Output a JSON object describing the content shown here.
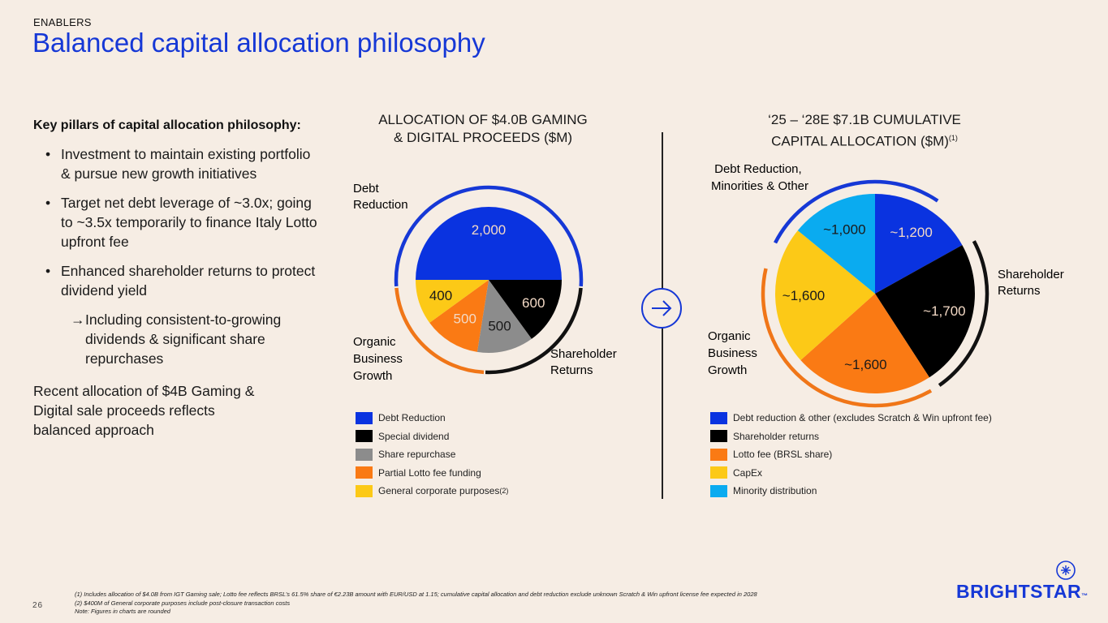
{
  "header": {
    "eyebrow": "ENABLERS",
    "title": "Balanced capital allocation philosophy"
  },
  "left": {
    "heading": "Key pillars of capital allocation philosophy:",
    "bullets": [
      "Investment to maintain existing portfolio & pursue new growth initiatives",
      "Target net debt leverage of ~3.0x; going to ~3.5x temporarily to finance Italy Lotto upfront fee",
      "Enhanced shareholder returns to protect dividend yield"
    ],
    "bullet_marker": "•",
    "sub_bullet_marker": "→",
    "sub_bullet": "Including consistent-to-growing dividends & significant share repurchases",
    "closing": "Recent allocation of $4B Gaming & Digital sale proceeds reflects balanced approach"
  },
  "chart_data": [
    {
      "type": "pie",
      "title_line1": "ALLOCATION OF $4.0B GAMING",
      "title_line2": "& DIGITAL PROCEEDS ($M)",
      "slices": [
        {
          "label": "Debt Reduction",
          "value": 2000,
          "display": "2,000",
          "color": "#0a33e0",
          "text_color": "#f3d9c5"
        },
        {
          "label": "Special dividend",
          "value": 600,
          "display": "600",
          "color": "#000000",
          "text_color": "#f3d9c5"
        },
        {
          "label": "Share repurchase",
          "value": 500,
          "display": "500",
          "color": "#8c8c8c",
          "text_color": "#1a1a1a"
        },
        {
          "label": "Partial Lotto fee funding",
          "value": 500,
          "display": "500",
          "color": "#fa7a14",
          "text_color": "#f3d9c5"
        },
        {
          "label": "General corporate purposes",
          "value": 400,
          "display": "400",
          "color": "#fcc917",
          "text_color": "#1a1a1a",
          "superscript": "(2)"
        }
      ],
      "group_labels": {
        "debt": {
          "line1": "Debt",
          "line2": "Reduction",
          "color": "#1638d6"
        },
        "organic": {
          "line1": "Organic",
          "line2": "Business",
          "line3": "Growth",
          "color": "#f07618"
        },
        "shareholder": {
          "line1": "Shareholder",
          "line2": "Returns",
          "color": "#111111"
        }
      }
    },
    {
      "type": "pie",
      "title_line1": "‘25 – ‘28E $7.1B CUMULATIVE",
      "title_line2": "CAPITAL ALLOCATION ($M)",
      "title_superscript": "(1)",
      "slices": [
        {
          "label": "Debt reduction & other (excludes Scratch & Win upfront fee)",
          "value": 1200,
          "display": "~1,200",
          "color": "#0a33e0",
          "text_color": "#f3d9c5"
        },
        {
          "label": "Shareholder returns",
          "value": 1700,
          "display": "~1,700",
          "color": "#000000",
          "text_color": "#f3d9c5"
        },
        {
          "label": "Lotto fee (BRSL share)",
          "value": 1600,
          "display": "~1,600",
          "color": "#fa7a14",
          "text_color": "#1a1a1a"
        },
        {
          "label": "CapEx",
          "value": 1600,
          "display": "~1,600",
          "color": "#fcc917",
          "text_color": "#1a1a1a"
        },
        {
          "label": "Minority distribution",
          "value": 1000,
          "display": "~1,000",
          "color": "#0aabf0",
          "text_color": "#1a1a1a"
        }
      ],
      "group_labels": {
        "debt": {
          "line1": "Debt Reduction,",
          "line2": "Minorities & Other",
          "color": "#1638d6"
        },
        "organic": {
          "line1": "Organic",
          "line2": "Business",
          "line3": "Growth",
          "color": "#f07618"
        },
        "shareholder": {
          "line1": "Shareholder",
          "line2": "Returns",
          "color": "#111111"
        }
      }
    }
  ],
  "arrow_icon": "arrow-right-circle-icon",
  "footnotes": [
    "(1) Includes allocation of $4.0B from IGT Gaming sale; Lotto fee reflects BRSL’s 61.5% share of €2.23B amount with EUR/USD at 1.15; cumulative capital allocation and debt reduction exclude unknown Scratch & Win upfront license fee expected in 2028",
    "(2) $400M of General corporate purposes include post-closure transaction costs",
    "Note: Figures in charts are rounded"
  ],
  "page_number": "26",
  "logo": {
    "text": "BRIGHTSTAR",
    "trademark": "™",
    "color": "#1638d6"
  }
}
